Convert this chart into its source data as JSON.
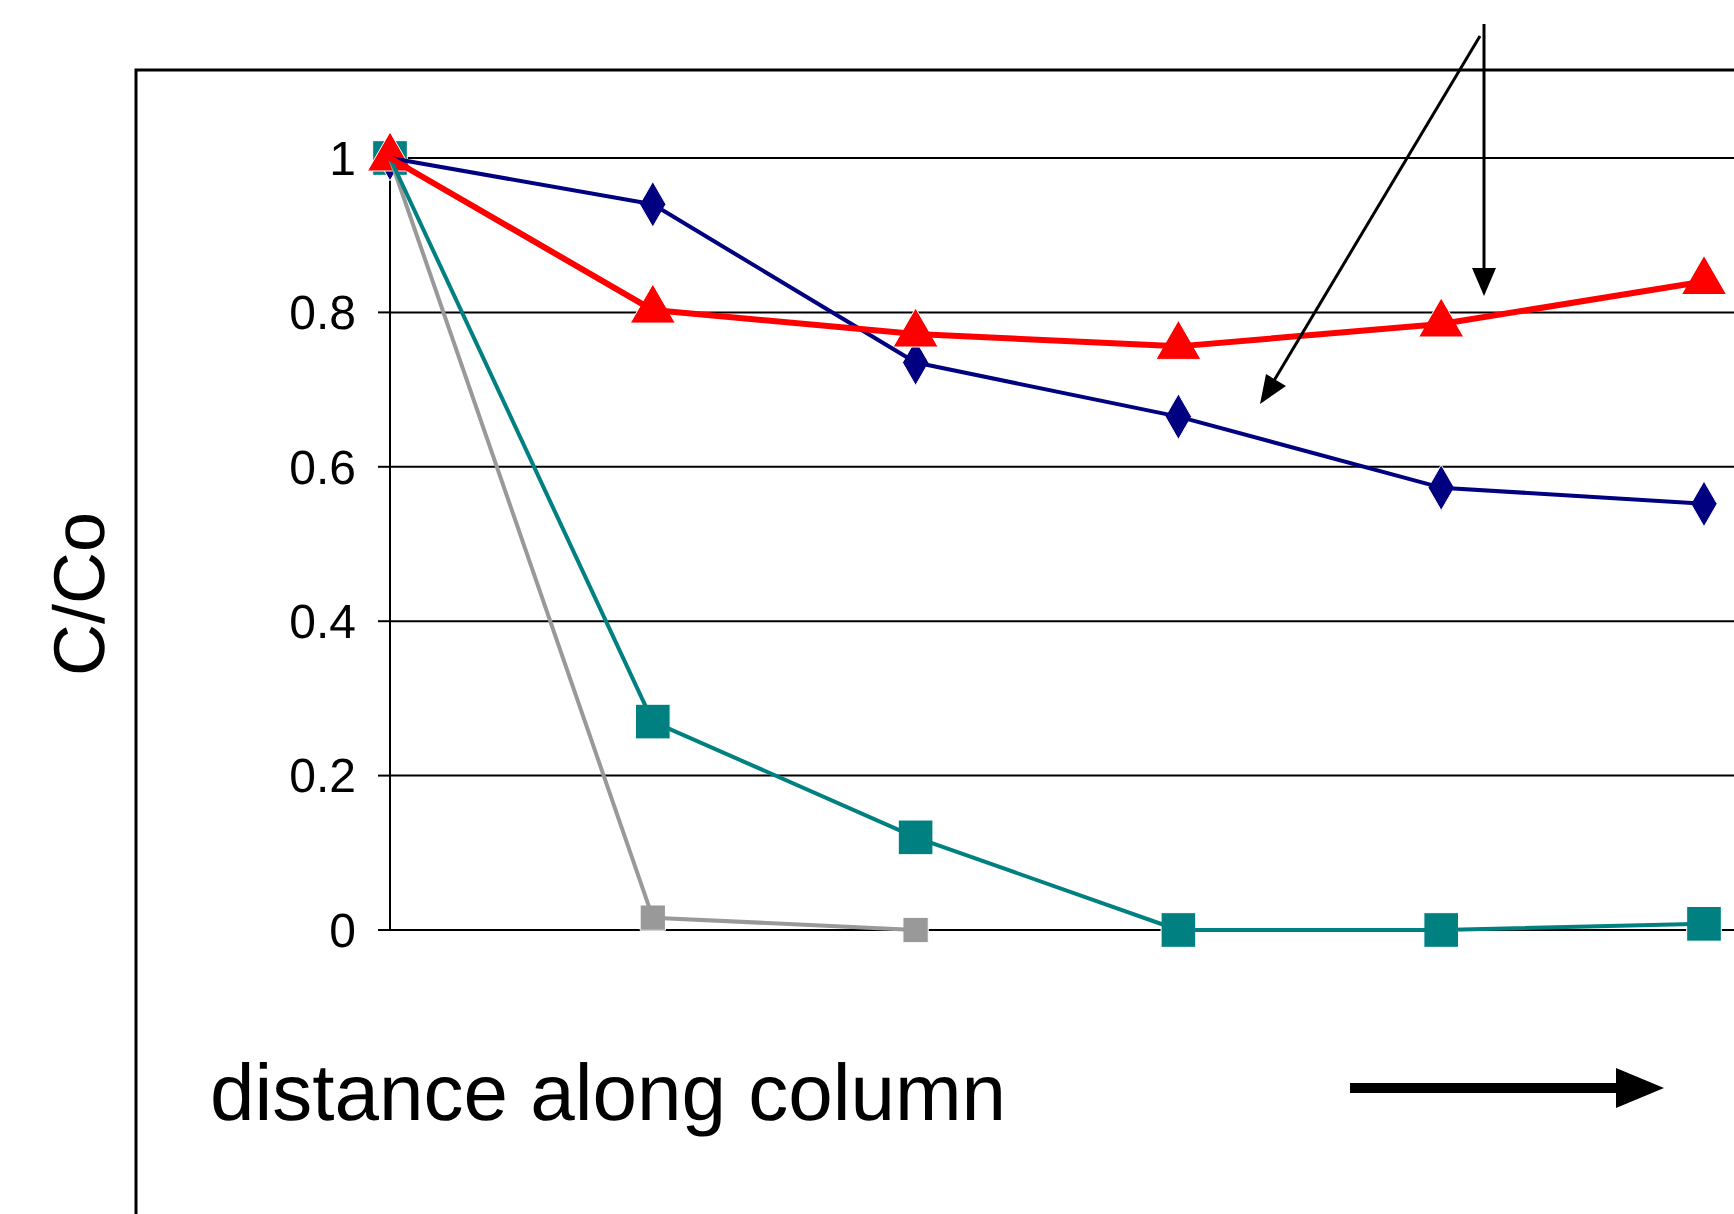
{
  "chart_data": {
    "type": "line",
    "ylabel": "C/Co",
    "xlabel": "distance along column",
    "categories": [
      null,
      null,
      null,
      null,
      null,
      null
    ],
    "ylim": [
      0,
      1
    ],
    "yticks": [
      0,
      {
        "value": 0.2,
        "label": "0.2"
      },
      {
        "value": 0.4,
        "label": "0.4"
      },
      {
        "value": 0.6,
        "label": "0.6"
      },
      {
        "value": 0.8,
        "label": "0.8"
      },
      1
    ],
    "grid": "y",
    "series": [
      {
        "color": "#999999",
        "marker": "square",
        "values": [
          1,
          0.016,
          0,
          null,
          null,
          null
        ]
      },
      {
        "color": "#008080",
        "marker": "square",
        "values": [
          1,
          0.27,
          0.12,
          0,
          0,
          0.008
        ]
      },
      {
        "color": "#000080",
        "marker": "diamond",
        "values": [
          1,
          0.94,
          0.735,
          0.665,
          0.573,
          0.552
        ]
      },
      {
        "color": "#ff0000",
        "marker": "triangle",
        "values": [
          1,
          0.803,
          0.772,
          0.756,
          0.785,
          0.84
        ]
      }
    ]
  }
}
